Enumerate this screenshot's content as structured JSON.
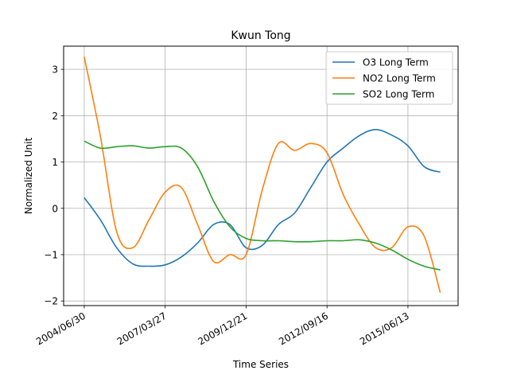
{
  "chart_data": {
    "type": "line",
    "title": "Kwun Tong",
    "xlabel": "Time Series",
    "ylabel": "Normalized Unit",
    "x_tick_labels": [
      "2004/06/30",
      "2007/03/27",
      "2009/12/21",
      "2012/09/16",
      "2015/06/13"
    ],
    "x_tick_values": [
      0,
      1000,
      2000,
      3000,
      4000
    ],
    "xlim": [
      -255,
      4620
    ],
    "y_ticks": [
      -2,
      -1,
      0,
      1,
      2,
      3
    ],
    "ylim": [
      -2.1,
      3.5
    ],
    "grid": true,
    "legend_position": "top-right",
    "x": [
      0,
      200,
      400,
      600,
      800,
      1000,
      1200,
      1400,
      1600,
      1800,
      2000,
      2200,
      2400,
      2600,
      2800,
      3000,
      3200,
      3400,
      3600,
      3800,
      4000,
      4200,
      4400
    ],
    "series": [
      {
        "name": "O3 Long Term",
        "color": "#1f77b4",
        "values": [
          0.23,
          -0.25,
          -0.85,
          -1.2,
          -1.25,
          -1.22,
          -1.05,
          -0.75,
          -0.35,
          -0.35,
          -0.85,
          -0.8,
          -0.35,
          -0.1,
          0.45,
          1.0,
          1.3,
          1.57,
          1.7,
          1.58,
          1.35,
          0.9,
          0.78
        ]
      },
      {
        "name": "NO2 Long Term",
        "color": "#ff7f0e",
        "values": [
          3.27,
          1.55,
          -0.5,
          -0.85,
          -0.25,
          0.35,
          0.45,
          -0.35,
          -1.15,
          -1.0,
          -1.0,
          0.4,
          1.4,
          1.25,
          1.4,
          1.2,
          0.3,
          -0.35,
          -0.85,
          -0.85,
          -0.4,
          -0.6,
          -1.82
        ]
      },
      {
        "name": "SO2 Long Term",
        "color": "#2ca02c",
        "values": [
          1.45,
          1.3,
          1.33,
          1.35,
          1.3,
          1.33,
          1.3,
          0.9,
          0.15,
          -0.4,
          -0.65,
          -0.7,
          -0.7,
          -0.72,
          -0.72,
          -0.7,
          -0.7,
          -0.68,
          -0.75,
          -0.9,
          -1.1,
          -1.25,
          -1.33
        ]
      }
    ]
  }
}
